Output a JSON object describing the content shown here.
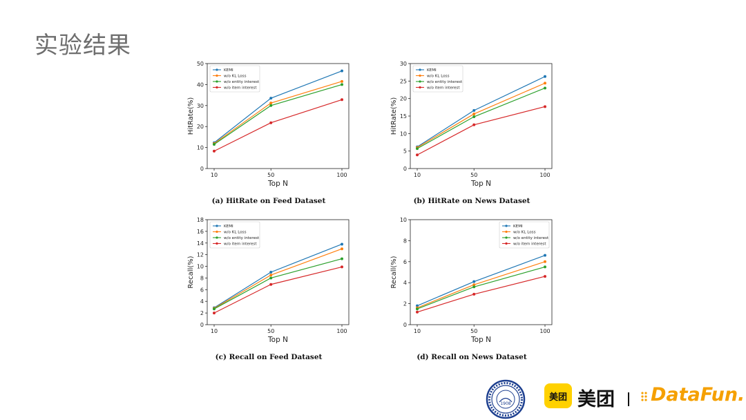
{
  "page": {
    "title": "实验结果"
  },
  "chart_data": [
    {
      "type": "line",
      "panel": "a",
      "title": "(a) HitRate on Feed Dataset",
      "xlabel": "Top N",
      "ylabel": "HitRate(%)",
      "categories": [
        "10",
        "50",
        "100"
      ],
      "ylim": [
        0,
        50
      ],
      "yticks": [
        0,
        10,
        20,
        30,
        40,
        50
      ],
      "legend_position": "top-left",
      "series": [
        {
          "name": "KEMI",
          "color": "#1f77b4",
          "values": [
            12.3,
            33.5,
            46.5
          ]
        },
        {
          "name": "w/o KL Loss",
          "color": "#ff7f0e",
          "values": [
            11.9,
            31.2,
            41.5
          ]
        },
        {
          "name": "w/o entity interest",
          "color": "#2ca02c",
          "values": [
            11.5,
            30.0,
            40.0
          ]
        },
        {
          "name": "w/o item interest",
          "color": "#d62728",
          "values": [
            8.3,
            21.8,
            32.8
          ]
        }
      ]
    },
    {
      "type": "line",
      "panel": "b",
      "title": "(b) HitRate on News Dataset",
      "xlabel": "Top N",
      "ylabel": "HitRate(%)",
      "categories": [
        "10",
        "50",
        "100"
      ],
      "ylim": [
        0,
        30
      ],
      "yticks": [
        0,
        5,
        10,
        15,
        20,
        25,
        30
      ],
      "legend_position": "top-left",
      "series": [
        {
          "name": "KEMI",
          "color": "#1f77b4",
          "values": [
            6.2,
            16.6,
            26.3
          ]
        },
        {
          "name": "w/o KL Loss",
          "color": "#ff7f0e",
          "values": [
            6.0,
            15.6,
            24.4
          ]
        },
        {
          "name": "w/o entity interest",
          "color": "#2ca02c",
          "values": [
            5.7,
            14.8,
            23.0
          ]
        },
        {
          "name": "w/o item interest",
          "color": "#d62728",
          "values": [
            3.9,
            12.5,
            17.7
          ]
        }
      ]
    },
    {
      "type": "line",
      "panel": "c",
      "title": "(c) Recall on Feed Dataset",
      "xlabel": "Top N",
      "ylabel": "Recall(%)",
      "categories": [
        "10",
        "50",
        "100"
      ],
      "ylim": [
        0,
        18
      ],
      "yticks": [
        0,
        2,
        4,
        6,
        8,
        10,
        12,
        14,
        16,
        18
      ],
      "legend_position": "top-left",
      "series": [
        {
          "name": "KEMI",
          "color": "#1f77b4",
          "values": [
            2.9,
            9.0,
            13.8
          ]
        },
        {
          "name": "w/o KL Loss",
          "color": "#ff7f0e",
          "values": [
            2.8,
            8.5,
            13.0
          ]
        },
        {
          "name": "w/o entity interest",
          "color": "#2ca02c",
          "values": [
            2.7,
            8.0,
            11.3
          ]
        },
        {
          "name": "w/o item interest",
          "color": "#d62728",
          "values": [
            2.0,
            6.9,
            9.9
          ]
        }
      ]
    },
    {
      "type": "line",
      "panel": "d",
      "title": "(d) Recall on News Dataset",
      "xlabel": "Top N",
      "ylabel": "Recall(%)",
      "categories": [
        "10",
        "50",
        "100"
      ],
      "ylim": [
        0,
        10
      ],
      "yticks": [
        0,
        2,
        4,
        6,
        8,
        10
      ],
      "legend_position": "top-right",
      "series": [
        {
          "name": "KEMI",
          "color": "#1f77b4",
          "values": [
            1.8,
            4.1,
            6.6
          ]
        },
        {
          "name": "w/o KL Loss",
          "color": "#ff7f0e",
          "values": [
            1.6,
            3.8,
            6.0
          ]
        },
        {
          "name": "w/o entity interest",
          "color": "#2ca02c",
          "values": [
            1.5,
            3.6,
            5.5
          ]
        },
        {
          "name": "w/o item interest",
          "color": "#d62728",
          "values": [
            1.2,
            2.9,
            4.6
          ]
        }
      ]
    }
  ],
  "footer": {
    "meituan_badge": "美团",
    "meituan_text": "美团",
    "separator": "|",
    "datafun_text": "DataFun.",
    "university_logo_year": "1908"
  },
  "icons": [
    "university-seal-icon",
    "meituan-logo-icon",
    "datafun-dots-icon"
  ]
}
